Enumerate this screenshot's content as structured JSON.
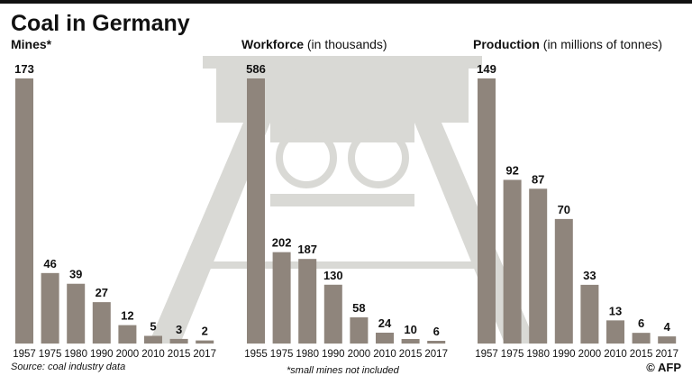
{
  "title": "Coal in Germany",
  "source": "Source: coal industry data",
  "footnote": "*small mines not included",
  "credit": "© AFP",
  "chart_data": [
    {
      "type": "bar",
      "title": "Mines*",
      "color": "#8f857c",
      "categories": [
        "1957",
        "1975",
        "1980",
        "1990",
        "2000",
        "2010",
        "2015",
        "2017"
      ],
      "values": [
        173,
        46,
        39,
        27,
        12,
        5,
        3,
        2
      ]
    },
    {
      "type": "bar",
      "title": "Workforce",
      "subtitle": "(in thousands)",
      "color": "#8f857c",
      "categories": [
        "1955",
        "1975",
        "1980",
        "1990",
        "2000",
        "2010",
        "2015",
        "2017"
      ],
      "values": [
        586,
        202,
        187,
        130,
        58,
        24,
        10,
        6
      ]
    },
    {
      "type": "bar",
      "title": "Production",
      "subtitle": "(in millions of tonnes)",
      "color": "#8f857c",
      "categories": [
        "1957",
        "1975",
        "1980",
        "1990",
        "2000",
        "2010",
        "2015",
        "2017"
      ],
      "values": [
        149,
        92,
        87,
        70,
        33,
        13,
        6,
        4
      ]
    }
  ]
}
